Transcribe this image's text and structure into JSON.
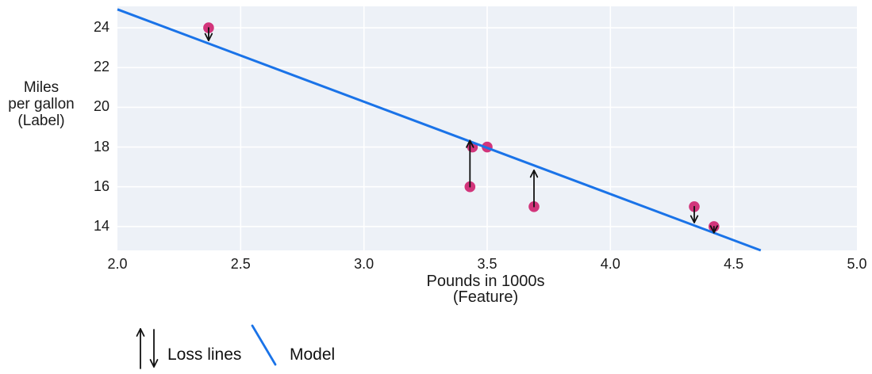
{
  "figure": {
    "background": "#ffffff",
    "text_color": "#1a1a1a"
  },
  "chart_data": {
    "type": "scatter",
    "xlabel": [
      "Pounds in 1000s",
      "(Feature)"
    ],
    "ylabel": [
      "Miles",
      "per gallon",
      "(Label)"
    ],
    "xlim": [
      2.0,
      5.0
    ],
    "ylim": [
      12.8,
      25.08
    ],
    "grid": true,
    "legend_position": "bottom",
    "plot_bg": "#edf1f7",
    "grid_color": "#ffffff",
    "xticks": [
      {
        "value": 2.0,
        "label": "2.0"
      },
      {
        "value": 2.5,
        "label": "2.5"
      },
      {
        "value": 3.0,
        "label": "3.0"
      },
      {
        "value": 3.5,
        "label": "3.5"
      },
      {
        "value": 4.0,
        "label": "4.0"
      },
      {
        "value": 4.5,
        "label": "4.5"
      },
      {
        "value": 5.0,
        "label": "5.0"
      }
    ],
    "yticks": [
      {
        "value": 14,
        "label": "14"
      },
      {
        "value": 16,
        "label": "16"
      },
      {
        "value": 18,
        "label": "18"
      },
      {
        "value": 20,
        "label": "20"
      },
      {
        "value": 22,
        "label": "22"
      },
      {
        "value": 24,
        "label": "24"
      }
    ],
    "points": [
      {
        "x": 2.37,
        "y": 24
      },
      {
        "x": 3.44,
        "y": 18
      },
      {
        "x": 3.5,
        "y": 18
      },
      {
        "x": 3.43,
        "y": 16
      },
      {
        "x": 3.69,
        "y": 15
      },
      {
        "x": 4.34,
        "y": 15
      },
      {
        "x": 4.42,
        "y": 14
      }
    ],
    "point_color": "#d2357b",
    "model_line": {
      "x1": 2.0,
      "y1": 24.93,
      "x2": 4.61,
      "y2": 12.8,
      "color": "#1a73e8"
    },
    "loss_lines": [
      {
        "x": 2.37,
        "from": 24,
        "to": 23.36,
        "direction": "down"
      },
      {
        "x": 3.43,
        "from": 16,
        "to": 18.33,
        "direction": "up"
      },
      {
        "x": 3.69,
        "from": 15,
        "to": 16.83,
        "direction": "up"
      },
      {
        "x": 4.34,
        "from": 15,
        "to": 14.2,
        "direction": "down"
      },
      {
        "x": 4.42,
        "from": 14,
        "to": 13.69,
        "direction": "down"
      }
    ],
    "loss_color": "#111111"
  },
  "legend": {
    "loss_label": "Loss lines",
    "model_label": "Model",
    "model_color": "#1a73e8"
  }
}
